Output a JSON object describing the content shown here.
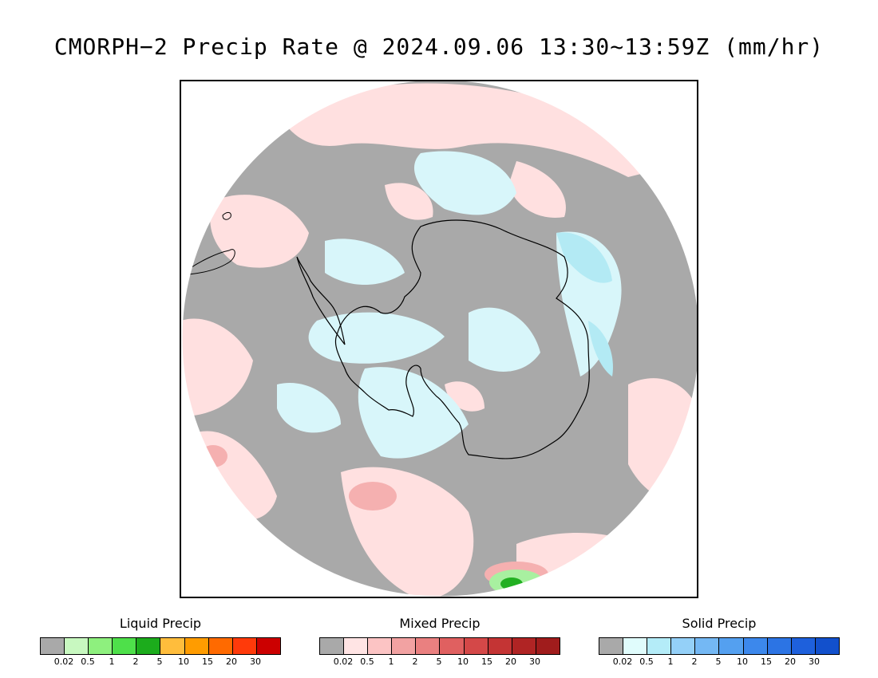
{
  "title": "CMORPH−2 Precip Rate @ 2024.09.06 13:30~13:59Z (mm/hr)",
  "map": {
    "projection": "south-polar-stereographic",
    "colors": {
      "background_no_precip": "#a9a9a9",
      "mixed_light": "#ffe0e0",
      "mixed_mid": "#f7b6b6",
      "solid_light": "#d8f6fa",
      "solid_mid": "#b3eaf4",
      "liquid_light": "#a8f0a0",
      "liquid_dark": "#22b022",
      "coastline": "#000000"
    }
  },
  "legends": [
    {
      "title": "Liquid Precip",
      "ticks": [
        "0.02",
        "0.5",
        "1",
        "2",
        "5",
        "10",
        "15",
        "20",
        "30"
      ],
      "colors": [
        "#a9a9a9",
        "#c8f8c0",
        "#8ef07e",
        "#4ee04a",
        "#1cac1c",
        "#ffbd3c",
        "#ff9c00",
        "#ff6a00",
        "#ff3a0a",
        "#cc0000"
      ]
    },
    {
      "title": "Mixed Precip",
      "ticks": [
        "0.02",
        "0.5",
        "1",
        "2",
        "5",
        "10",
        "15",
        "20",
        "30"
      ],
      "colors": [
        "#a9a9a9",
        "#ffe4e4",
        "#fcc4c4",
        "#f2a2a2",
        "#ea8080",
        "#e06060",
        "#d44848",
        "#c43434",
        "#b02424",
        "#a01c1c"
      ]
    },
    {
      "title": "Solid Precip",
      "ticks": [
        "0.02",
        "0.5",
        "1",
        "2",
        "5",
        "10",
        "15",
        "20",
        "30"
      ],
      "colors": [
        "#a9a9a9",
        "#e0fcfc",
        "#b4ecf8",
        "#94d0f8",
        "#74b8f4",
        "#54a0f0",
        "#3c88ec",
        "#2c74e4",
        "#1e60dc",
        "#1250cc"
      ]
    }
  ]
}
